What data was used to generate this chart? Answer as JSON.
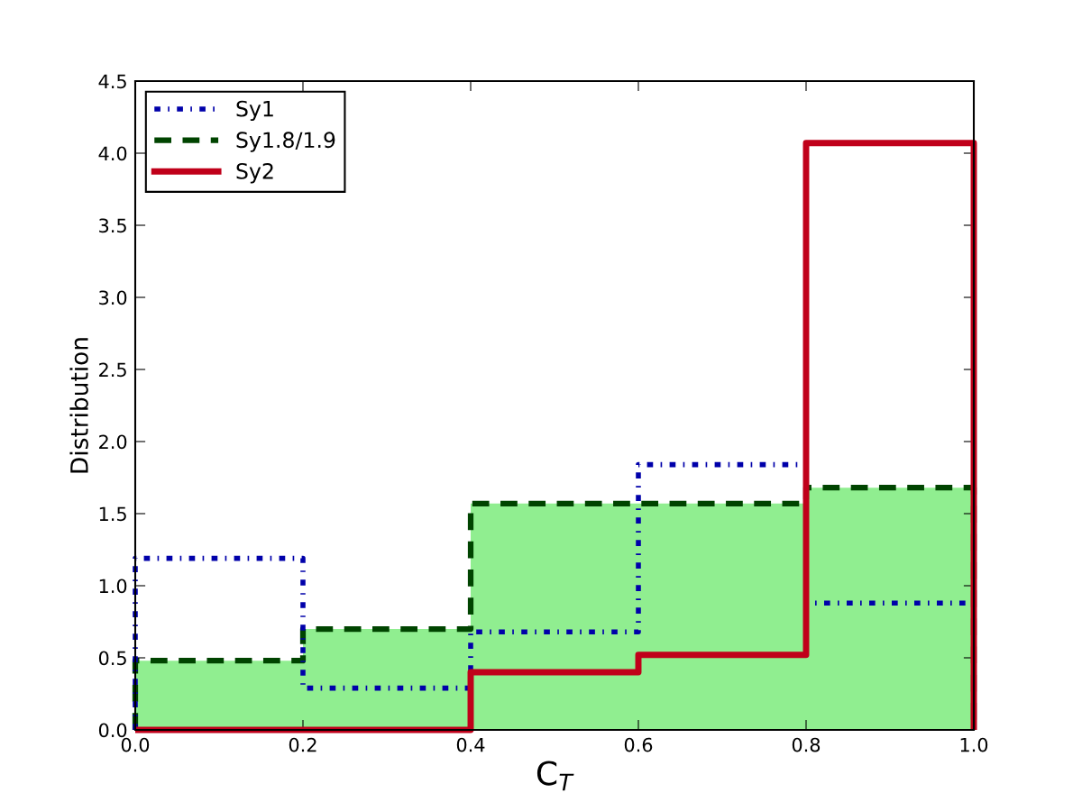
{
  "chart_data": {
    "type": "histogram",
    "xlabel": "C$_{T}$",
    "ylabel": "Distribution",
    "bins": [
      0.0,
      0.2,
      0.4,
      0.6,
      0.8,
      1.0
    ],
    "series": [
      {
        "name": "Sy1",
        "color": "#0000aa",
        "line_style": "dashdot",
        "values": [
          1.19,
          0.29,
          0.68,
          1.84,
          0.88
        ]
      },
      {
        "name": "Sy1.8/1.9",
        "color": "#004400",
        "colors": [
          "#90ee90",
          "#90ee90",
          "#90ee90",
          "#90ee90",
          "#90ee90"
        ],
        "line_style": "dashed",
        "values": [
          0.48,
          0.7,
          1.57,
          1.57,
          1.68
        ]
      },
      {
        "name": "Sy2",
        "color": "#c0001a",
        "line_style": "solid",
        "values": [
          0,
          0,
          0.4,
          0.52,
          4.07
        ]
      }
    ],
    "xlim": [
      0.0,
      1.0
    ],
    "xticks": [
      {
        "value": 0.0,
        "label": "0.0"
      },
      {
        "value": 0.2,
        "label": "0.2"
      },
      {
        "value": 0.4,
        "label": "0.4"
      },
      {
        "value": 0.6,
        "label": "0.6"
      },
      {
        "value": 0.8,
        "label": "0.8"
      },
      {
        "value": 1.0,
        "label": "1.0"
      }
    ],
    "ylim": [
      0.0,
      4.5
    ],
    "yticks": [
      {
        "value": 0.0,
        "label": "0.0"
      },
      {
        "value": 0.5,
        "label": "0.5"
      },
      {
        "value": 1.0,
        "label": "1.0"
      },
      {
        "value": 1.5,
        "label": "1.5"
      },
      {
        "value": 2.0,
        "label": "2.0"
      },
      {
        "value": 2.5,
        "label": "2.5"
      },
      {
        "value": 3.0,
        "label": "3.0"
      },
      {
        "value": 3.5,
        "label": "3.5"
      },
      {
        "value": 4.0,
        "label": "4.0"
      },
      {
        "value": 4.5,
        "label": "4.5"
      }
    ],
    "legend": "upper left"
  }
}
